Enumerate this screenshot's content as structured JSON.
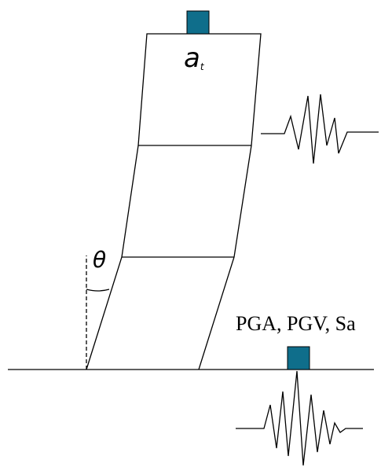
{
  "labels": {
    "top_accel": "a",
    "top_accel_sub": "t",
    "angle": "θ",
    "ground": "PGA, PGV, Sa"
  }
}
